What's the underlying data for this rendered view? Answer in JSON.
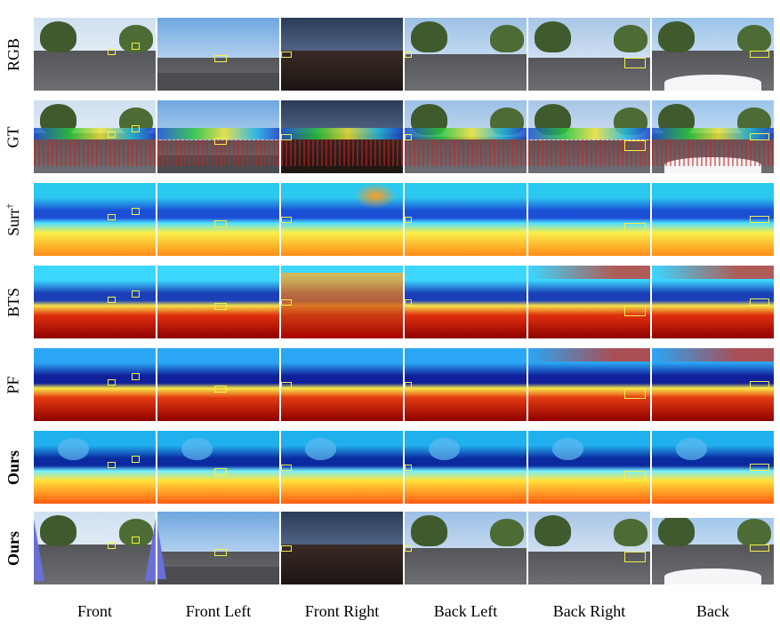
{
  "rows": [
    {
      "label": "RGB",
      "bold": false,
      "type": "rgb"
    },
    {
      "label": "GT",
      "bold": false,
      "type": "gt"
    },
    {
      "label": "Surr",
      "sup": "†",
      "bold": false,
      "type": "depth"
    },
    {
      "label": "BTS",
      "bold": false,
      "type": "depth"
    },
    {
      "label": "PF",
      "bold": false,
      "type": "depth"
    },
    {
      "label": "Ours",
      "bold": true,
      "type": "depth"
    },
    {
      "label": "Ours",
      "bold": true,
      "type": "rgb-ours"
    }
  ],
  "columns": [
    "Front",
    "Front Left",
    "Front Right",
    "Back Left",
    "Back Right",
    "Back"
  ],
  "colors": {
    "sky": "#9fc3e4",
    "road": "#55565a",
    "tree": "#3f5a2d",
    "depth_near": "#c41010",
    "depth_mid": "#ffe33a",
    "depth_far": "#1b33b8",
    "highlight": "#f2f04a",
    "wedge": "#6a6fd8"
  }
}
